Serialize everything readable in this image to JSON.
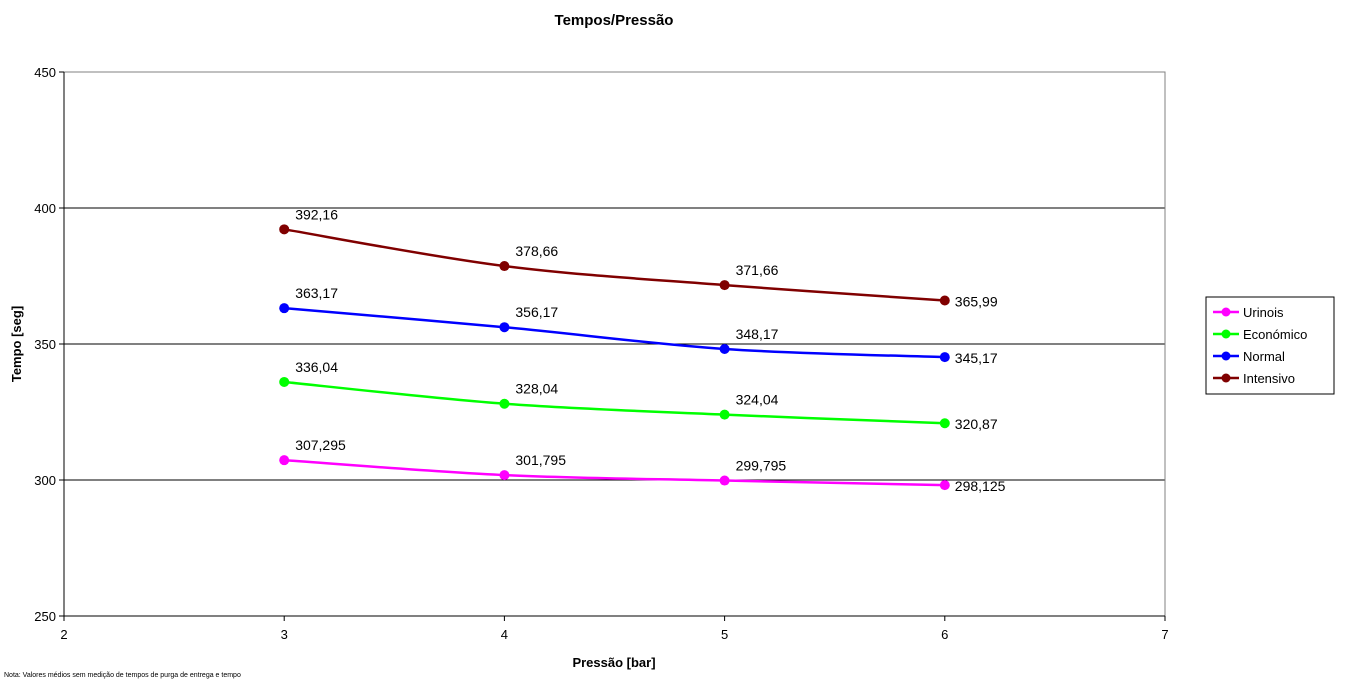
{
  "chart_data": {
    "type": "line",
    "title": "Tempos/Pressão",
    "xlabel": "Pressão [bar]",
    "ylabel": "Tempo [seg]",
    "xlim": [
      2,
      7
    ],
    "ylim": [
      250,
      450
    ],
    "x_ticks": [
      "2",
      "3",
      "4",
      "5",
      "6",
      "7"
    ],
    "y_ticks": [
      "250",
      "300",
      "350",
      "400",
      "450"
    ],
    "x": [
      3,
      4,
      5,
      6
    ],
    "grid": "horizontal major gridlines",
    "legend_position": "right",
    "series": [
      {
        "name": "Urinois",
        "color": "#FF00FF",
        "values": [
          307.295,
          301.795,
          299.795,
          298.125
        ],
        "labels": [
          "307,295",
          "301,795",
          "299,795",
          "298,125"
        ]
      },
      {
        "name": "Económico",
        "color": "#00FF00",
        "values": [
          336.04,
          328.04,
          324.04,
          320.87
        ],
        "labels": [
          "336,04",
          "328,04",
          "324,04",
          "320,87"
        ]
      },
      {
        "name": "Normal",
        "color": "#0000FF",
        "values": [
          363.17,
          356.17,
          348.17,
          345.17
        ],
        "labels": [
          "363,17",
          "356,17",
          "348,17",
          "345,17"
        ]
      },
      {
        "name": "Intensivo",
        "color": "#800000",
        "values": [
          392.16,
          378.66,
          371.66,
          365.99
        ],
        "labels": [
          "392,16",
          "378,66",
          "371,66",
          "365,99"
        ]
      }
    ]
  },
  "note": "Nota: Valores médios sem medição de tempos de purga de entrega e tempo"
}
